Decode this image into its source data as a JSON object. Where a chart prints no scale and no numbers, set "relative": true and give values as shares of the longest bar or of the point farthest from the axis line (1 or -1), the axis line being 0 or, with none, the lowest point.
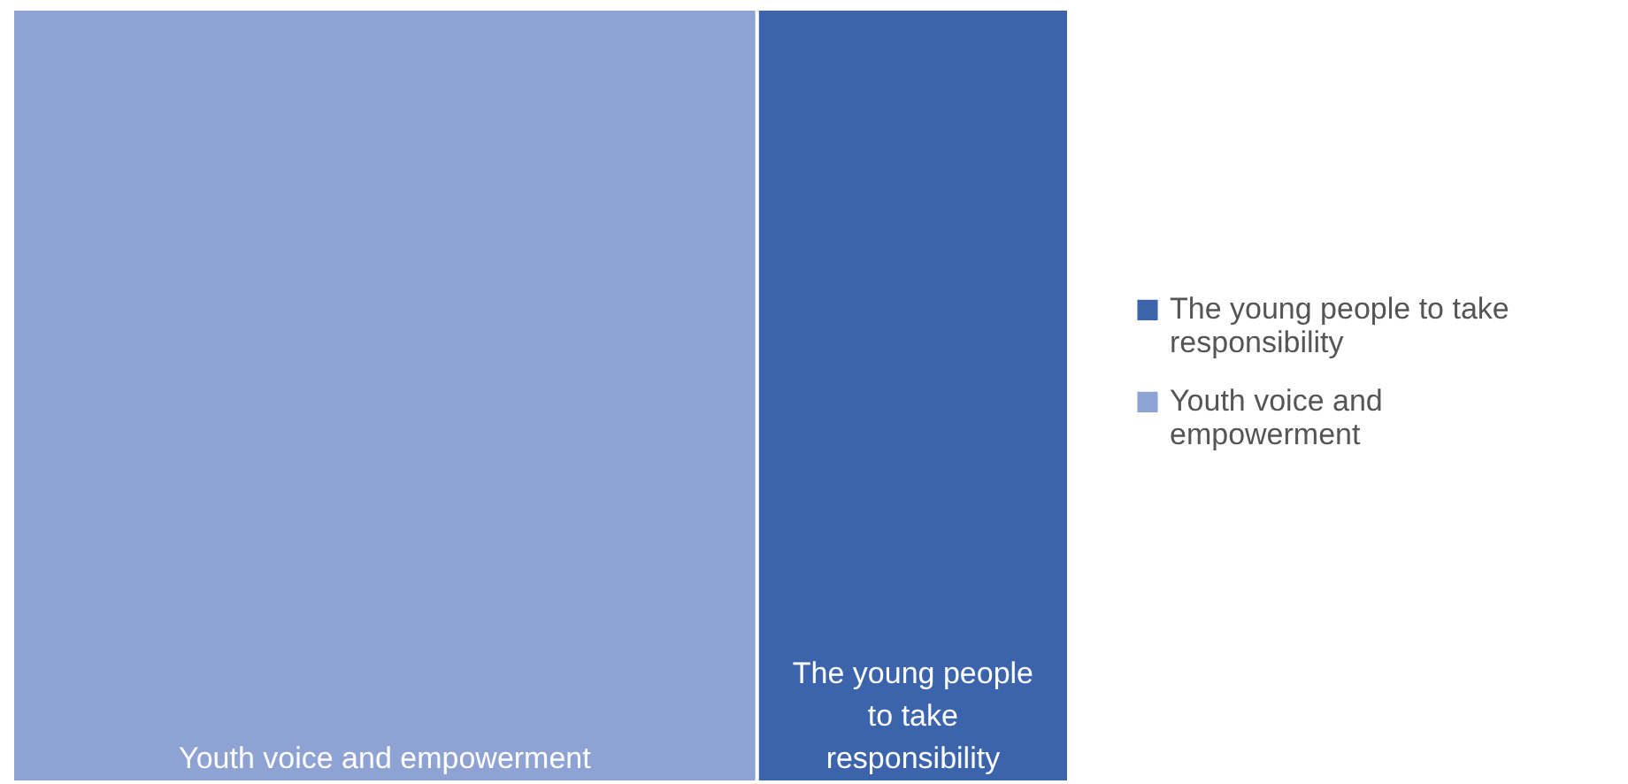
{
  "chart_data": {
    "type": "bar",
    "orientation": "horizontal",
    "stacked": true,
    "relative": true,
    "categories": [
      null
    ],
    "series": [
      {
        "name": "Youth voice and empowerment",
        "color": "#8fa2d4",
        "values": [
          0.705
        ]
      },
      {
        "name": "The young people to take responsibility",
        "color": "#3c64ad",
        "values": [
          0.295
        ]
      }
    ],
    "legend": "right"
  }
}
